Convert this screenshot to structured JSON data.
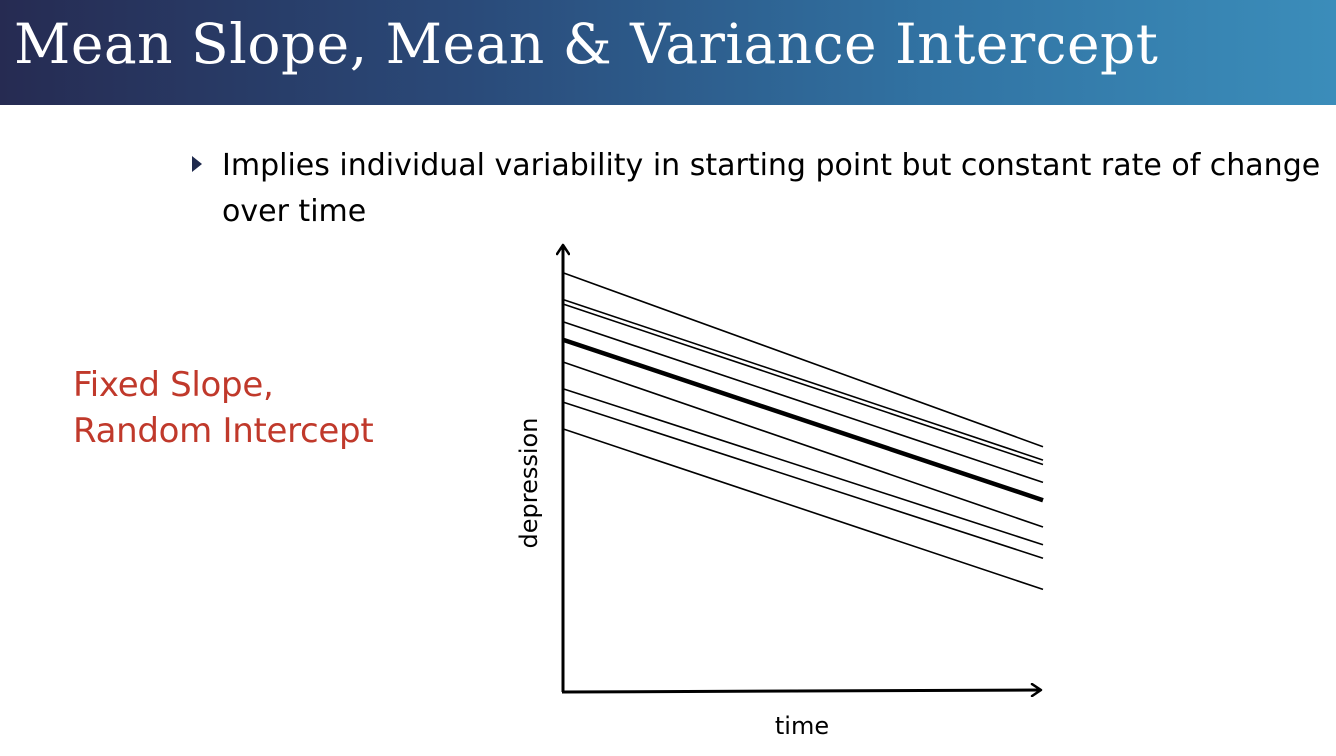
{
  "title": "Mean Slope, Mean & Variance Intercept",
  "bullet": {
    "text": "Implies individual variability in starting point but constant rate of change over time"
  },
  "side_label": {
    "line1": "Fixed Slope,",
    "line2": "Random Intercept"
  },
  "colors": {
    "title_bar_start": "#262b52",
    "title_bar_end": "#3b8dba",
    "title_text": "#ffffff",
    "side_label": "#c0392b",
    "bullet_marker": "#1f2a4d",
    "lines": "#000000"
  },
  "icons": {
    "bullet": "triangle-right-icon"
  },
  "chart_data": {
    "type": "line",
    "title": "",
    "xlabel": "time",
    "ylabel": "depression",
    "xlim": [
      0,
      1
    ],
    "ylim": [
      0,
      1
    ],
    "grid": false,
    "legend": "none",
    "x": [
      0,
      1
    ],
    "series": [
      {
        "values": [
          0.94,
          0.55
        ]
      },
      {
        "values": [
          0.88,
          0.52
        ]
      },
      {
        "values": [
          0.87,
          0.51
        ]
      },
      {
        "values": [
          0.83,
          0.47
        ]
      },
      {
        "values": [
          0.79,
          0.43
        ],
        "emphasis": "mean"
      },
      {
        "values": [
          0.74,
          0.37
        ]
      },
      {
        "values": [
          0.68,
          0.33
        ]
      },
      {
        "values": [
          0.65,
          0.3
        ]
      },
      {
        "values": [
          0.59,
          0.23
        ]
      }
    ]
  }
}
